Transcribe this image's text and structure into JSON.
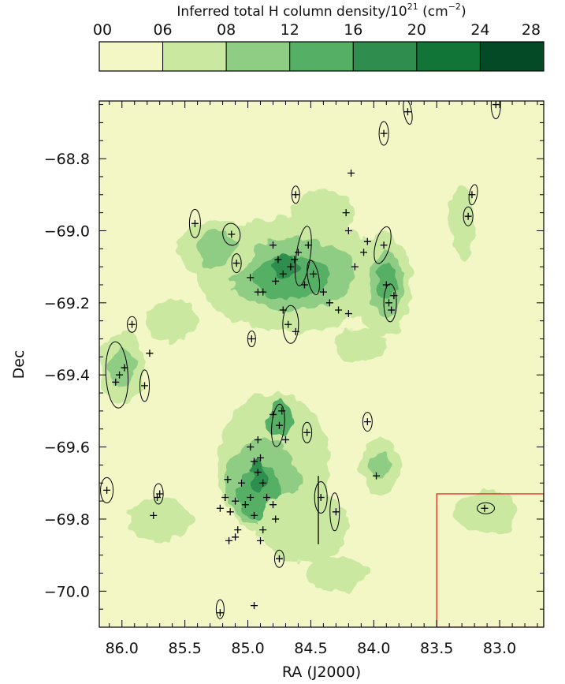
{
  "chart_data": {
    "type": "heatmap",
    "colorbar": {
      "title": "Inferred total H column density/10",
      "title_exp": "21",
      "title_unit_open": " (cm",
      "title_unit_exp": "−2",
      "title_unit_close": ")",
      "tick_labels": [
        "00",
        "06",
        "08",
        "12",
        "16",
        "20",
        "24",
        "28"
      ],
      "bins": [
        {
          "from": 0,
          "to": 6,
          "color": "#f3f7c6"
        },
        {
          "from": 6,
          "to": 8,
          "color": "#cbe8a1"
        },
        {
          "from": 8,
          "to": 12,
          "color": "#90cd84"
        },
        {
          "from": 12,
          "to": 16,
          "color": "#55b065"
        },
        {
          "from": 16,
          "to": 20,
          "color": "#2f8e4d"
        },
        {
          "from": 20,
          "to": 24,
          "color": "#117538"
        },
        {
          "from": 24,
          "to": 28,
          "color": "#054a27"
        }
      ]
    },
    "xlabel": "RA (J2000)",
    "ylabel": "Dec",
    "x_ticks": [
      86.0,
      85.5,
      85.0,
      84.5,
      84.0,
      83.5,
      83.0
    ],
    "x_tick_labels": [
      "86.0",
      "85.5",
      "85.0",
      "84.5",
      "84.0",
      "83.5",
      "83.0"
    ],
    "y_ticks": [
      -68.8,
      -69.0,
      -69.2,
      -69.4,
      -69.6,
      -69.8,
      -70.0
    ],
    "y_tick_labels": [
      "−68.8",
      "−69.0",
      "−69.2",
      "−69.4",
      "−69.6",
      "−69.8",
      "−70.0"
    ],
    "xlim": [
      86.18,
      82.65
    ],
    "ylim": [
      -70.1,
      -68.64
    ],
    "background_color": "#f3f7c6",
    "region_box": {
      "ra_from": 83.5,
      "ra_to": 82.65,
      "dec_from": -70.1,
      "dec_to": -69.73,
      "color": "#e0281e"
    },
    "density_blobs": [
      {
        "ra": 84.65,
        "dec": -69.12,
        "r_ra": 0.75,
        "r_dec": 0.16,
        "level": 2
      },
      {
        "ra": 84.65,
        "dec": -69.12,
        "r_ra": 0.5,
        "r_dec": 0.1,
        "level": 3
      },
      {
        "ra": 84.65,
        "dec": -69.13,
        "r_ra": 0.3,
        "r_dec": 0.06,
        "level": 4
      },
      {
        "ra": 84.7,
        "dec": -69.1,
        "r_ra": 0.1,
        "r_dec": 0.03,
        "level": 5
      },
      {
        "ra": 85.25,
        "dec": -69.05,
        "r_ra": 0.3,
        "r_dec": 0.08,
        "level": 2
      },
      {
        "ra": 85.25,
        "dec": -69.05,
        "r_ra": 0.15,
        "r_dec": 0.05,
        "level": 3
      },
      {
        "ra": 83.92,
        "dec": -69.15,
        "r_ra": 0.22,
        "r_dec": 0.14,
        "level": 2
      },
      {
        "ra": 83.9,
        "dec": -69.15,
        "r_ra": 0.14,
        "r_dec": 0.09,
        "level": 3
      },
      {
        "ra": 83.9,
        "dec": -69.14,
        "r_ra": 0.08,
        "r_dec": 0.05,
        "level": 4
      },
      {
        "ra": 86.0,
        "dec": -69.38,
        "r_ra": 0.18,
        "r_dec": 0.1,
        "level": 2
      },
      {
        "ra": 86.0,
        "dec": -69.38,
        "r_ra": 0.1,
        "r_dec": 0.05,
        "level": 3
      },
      {
        "ra": 84.8,
        "dec": -69.65,
        "r_ra": 0.45,
        "r_dec": 0.2,
        "level": 2
      },
      {
        "ra": 84.88,
        "dec": -69.7,
        "r_ra": 0.3,
        "r_dec": 0.12,
        "level": 3
      },
      {
        "ra": 84.9,
        "dec": -69.73,
        "r_ra": 0.18,
        "r_dec": 0.07,
        "level": 4
      },
      {
        "ra": 84.75,
        "dec": -69.52,
        "r_ra": 0.1,
        "r_dec": 0.05,
        "level": 4
      },
      {
        "ra": 84.92,
        "dec": -69.68,
        "r_ra": 0.06,
        "r_dec": 0.04,
        "level": 5
      },
      {
        "ra": 84.55,
        "dec": -69.82,
        "r_ra": 0.35,
        "r_dec": 0.1,
        "level": 2
      },
      {
        "ra": 83.95,
        "dec": -69.65,
        "r_ra": 0.15,
        "r_dec": 0.08,
        "level": 2
      },
      {
        "ra": 83.95,
        "dec": -69.65,
        "r_ra": 0.08,
        "r_dec": 0.04,
        "level": 3
      },
      {
        "ra": 85.7,
        "dec": -69.8,
        "r_ra": 0.25,
        "r_dec": 0.06,
        "level": 2
      },
      {
        "ra": 83.1,
        "dec": -69.78,
        "r_ra": 0.25,
        "r_dec": 0.06,
        "level": 2
      },
      {
        "ra": 84.3,
        "dec": -69.95,
        "r_ra": 0.25,
        "r_dec": 0.05,
        "level": 2
      },
      {
        "ra": 85.6,
        "dec": -69.25,
        "r_ra": 0.2,
        "r_dec": 0.06,
        "level": 2
      },
      {
        "ra": 84.4,
        "dec": -68.95,
        "r_ra": 0.25,
        "r_dec": 0.06,
        "level": 2
      },
      {
        "ra": 83.3,
        "dec": -68.98,
        "r_ra": 0.1,
        "r_dec": 0.1,
        "level": 2
      },
      {
        "ra": 84.1,
        "dec": -69.32,
        "r_ra": 0.2,
        "r_dec": 0.05,
        "level": 2
      }
    ],
    "sources": [
      {
        "ra": 86.12,
        "dec": -69.72
      },
      {
        "ra": 86.05,
        "dec": -69.42
      },
      {
        "ra": 86.02,
        "dec": -69.4
      },
      {
        "ra": 85.98,
        "dec": -69.38
      },
      {
        "ra": 85.92,
        "dec": -69.26
      },
      {
        "ra": 85.82,
        "dec": -69.43
      },
      {
        "ra": 85.78,
        "dec": -69.34
      },
      {
        "ra": 85.72,
        "dec": -69.74
      },
      {
        "ra": 85.7,
        "dec": -69.73
      },
      {
        "ra": 85.75,
        "dec": -69.79
      },
      {
        "ra": 85.42,
        "dec": -68.98
      },
      {
        "ra": 85.13,
        "dec": -69.01
      },
      {
        "ra": 85.09,
        "dec": -69.09
      },
      {
        "ra": 84.97,
        "dec": -69.3
      },
      {
        "ra": 84.62,
        "dec": -68.9
      },
      {
        "ra": 84.52,
        "dec": -69.04
      },
      {
        "ra": 84.6,
        "dec": -69.06
      },
      {
        "ra": 84.63,
        "dec": -69.08
      },
      {
        "ra": 84.66,
        "dec": -69.1
      },
      {
        "ra": 84.72,
        "dec": -69.12
      },
      {
        "ra": 84.78,
        "dec": -69.14
      },
      {
        "ra": 84.55,
        "dec": -69.15
      },
      {
        "ra": 84.48,
        "dec": -69.12
      },
      {
        "ra": 84.4,
        "dec": -69.17
      },
      {
        "ra": 84.35,
        "dec": -69.2
      },
      {
        "ra": 84.28,
        "dec": -69.22
      },
      {
        "ra": 84.2,
        "dec": -69.23
      },
      {
        "ra": 84.15,
        "dec": -69.1
      },
      {
        "ra": 84.08,
        "dec": -69.06
      },
      {
        "ra": 84.05,
        "dec": -69.03
      },
      {
        "ra": 83.92,
        "dec": -69.04
      },
      {
        "ra": 83.9,
        "dec": -69.15
      },
      {
        "ra": 83.88,
        "dec": -69.2
      },
      {
        "ra": 83.86,
        "dec": -69.22
      },
      {
        "ra": 83.84,
        "dec": -69.18
      },
      {
        "ra": 83.92,
        "dec": -68.73
      },
      {
        "ra": 83.73,
        "dec": -68.67
      },
      {
        "ra": 83.25,
        "dec": -68.96
      },
      {
        "ra": 83.22,
        "dec": -68.9
      },
      {
        "ra": 83.03,
        "dec": -68.65
      },
      {
        "ra": 84.18,
        "dec": -68.84
      },
      {
        "ra": 84.22,
        "dec": -68.95
      },
      {
        "ra": 84.2,
        "dec": -69.0
      },
      {
        "ra": 84.68,
        "dec": -69.26
      },
      {
        "ra": 84.62,
        "dec": -69.28
      },
      {
        "ra": 84.72,
        "dec": -69.22
      },
      {
        "ra": 84.88,
        "dec": -69.17
      },
      {
        "ra": 84.92,
        "dec": -69.17
      },
      {
        "ra": 84.98,
        "dec": -69.13
      },
      {
        "ra": 84.8,
        "dec": -69.04
      },
      {
        "ra": 84.76,
        "dec": -69.08
      },
      {
        "ra": 84.73,
        "dec": -69.5
      },
      {
        "ra": 84.8,
        "dec": -69.51
      },
      {
        "ra": 84.75,
        "dec": -69.54
      },
      {
        "ra": 84.7,
        "dec": -69.58
      },
      {
        "ra": 84.53,
        "dec": -69.56
      },
      {
        "ra": 84.42,
        "dec": -69.74
      },
      {
        "ra": 84.3,
        "dec": -69.78
      },
      {
        "ra": 84.05,
        "dec": -69.53
      },
      {
        "ra": 83.98,
        "dec": -69.68
      },
      {
        "ra": 84.75,
        "dec": -69.91
      },
      {
        "ra": 84.95,
        "dec": -70.04
      },
      {
        "ra": 85.22,
        "dec": -70.06
      },
      {
        "ra": 84.9,
        "dec": -69.63
      },
      {
        "ra": 84.95,
        "dec": -69.64
      },
      {
        "ra": 84.92,
        "dec": -69.67
      },
      {
        "ra": 84.88,
        "dec": -69.7
      },
      {
        "ra": 84.85,
        "dec": -69.74
      },
      {
        "ra": 84.8,
        "dec": -69.76
      },
      {
        "ra": 84.78,
        "dec": -69.8
      },
      {
        "ra": 84.88,
        "dec": -69.83
      },
      {
        "ra": 84.95,
        "dec": -69.79
      },
      {
        "ra": 84.98,
        "dec": -69.74
      },
      {
        "ra": 85.02,
        "dec": -69.76
      },
      {
        "ra": 85.05,
        "dec": -69.7
      },
      {
        "ra": 85.1,
        "dec": -69.75
      },
      {
        "ra": 85.14,
        "dec": -69.78
      },
      {
        "ra": 85.18,
        "dec": -69.74
      },
      {
        "ra": 85.22,
        "dec": -69.77
      },
      {
        "ra": 85.16,
        "dec": -69.69
      },
      {
        "ra": 85.1,
        "dec": -69.85
      },
      {
        "ra": 85.08,
        "dec": -69.83
      },
      {
        "ra": 85.15,
        "dec": -69.86
      },
      {
        "ra": 84.9,
        "dec": -69.86
      },
      {
        "ra": 84.98,
        "dec": -69.6
      },
      {
        "ra": 84.92,
        "dec": -69.58
      },
      {
        "ra": 83.12,
        "dec": -69.77
      }
    ],
    "source_ellipses": [
      {
        "ra": 86.12,
        "dec": -69.72,
        "rx": 8,
        "ry": 16,
        "rot": 0
      },
      {
        "ra": 86.04,
        "dec": -69.4,
        "rx": 14,
        "ry": 42,
        "rot": -3
      },
      {
        "ra": 85.92,
        "dec": -69.26,
        "rx": 6,
        "ry": 10,
        "rot": 0
      },
      {
        "ra": 85.82,
        "dec": -69.43,
        "rx": 6,
        "ry": 20,
        "rot": 0
      },
      {
        "ra": 85.71,
        "dec": -69.73,
        "rx": 6,
        "ry": 13,
        "rot": 0
      },
      {
        "ra": 85.42,
        "dec": -68.98,
        "rx": 7,
        "ry": 18,
        "rot": 0
      },
      {
        "ra": 85.13,
        "dec": -69.01,
        "rx": 11,
        "ry": 14,
        "rot": -10
      },
      {
        "ra": 85.09,
        "dec": -69.09,
        "rx": 6,
        "ry": 12,
        "rot": 0
      },
      {
        "ra": 84.97,
        "dec": -69.3,
        "rx": 5,
        "ry": 10,
        "rot": 0
      },
      {
        "ra": 84.62,
        "dec": -68.9,
        "rx": 5,
        "ry": 11,
        "rot": 0
      },
      {
        "ra": 84.56,
        "dec": -69.07,
        "rx": 9,
        "ry": 38,
        "rot": 8
      },
      {
        "ra": 84.48,
        "dec": -69.13,
        "rx": 7,
        "ry": 22,
        "rot": -10
      },
      {
        "ra": 84.66,
        "dec": -69.26,
        "rx": 10,
        "ry": 24,
        "rot": 0
      },
      {
        "ra": 83.93,
        "dec": -69.04,
        "rx": 9,
        "ry": 24,
        "rot": 15
      },
      {
        "ra": 83.87,
        "dec": -69.2,
        "rx": 8,
        "ry": 24,
        "rot": 0
      },
      {
        "ra": 83.92,
        "dec": -68.73,
        "rx": 6,
        "ry": 15,
        "rot": 0
      },
      {
        "ra": 83.73,
        "dec": -68.67,
        "rx": 5,
        "ry": 16,
        "rot": -10
      },
      {
        "ra": 83.25,
        "dec": -68.96,
        "rx": 6,
        "ry": 12,
        "rot": 0
      },
      {
        "ra": 83.21,
        "dec": -68.9,
        "rx": 5,
        "ry": 13,
        "rot": 10
      },
      {
        "ra": 83.03,
        "dec": -68.65,
        "rx": 6,
        "ry": 18,
        "rot": 0
      },
      {
        "ra": 84.76,
        "dec": -69.54,
        "rx": 8,
        "ry": 27,
        "rot": 5
      },
      {
        "ra": 84.53,
        "dec": -69.56,
        "rx": 6,
        "ry": 13,
        "rot": 0
      },
      {
        "ra": 84.42,
        "dec": -69.74,
        "rx": 8,
        "ry": 20,
        "rot": 0
      },
      {
        "ra": 84.31,
        "dec": -69.78,
        "rx": 6,
        "ry": 24,
        "rot": 0
      },
      {
        "ra": 84.05,
        "dec": -69.53,
        "rx": 6,
        "ry": 12,
        "rot": 0
      },
      {
        "ra": 84.75,
        "dec": -69.91,
        "rx": 6,
        "ry": 11,
        "rot": 0
      },
      {
        "ra": 85.22,
        "dec": -70.05,
        "rx": 5,
        "ry": 12,
        "rot": 0
      },
      {
        "ra": 83.11,
        "dec": -69.77,
        "rx": 11,
        "ry": 7,
        "rot": 0
      }
    ],
    "error_bar": {
      "ra": 84.44,
      "dec_from": -69.68,
      "dec_to": -69.87
    }
  }
}
